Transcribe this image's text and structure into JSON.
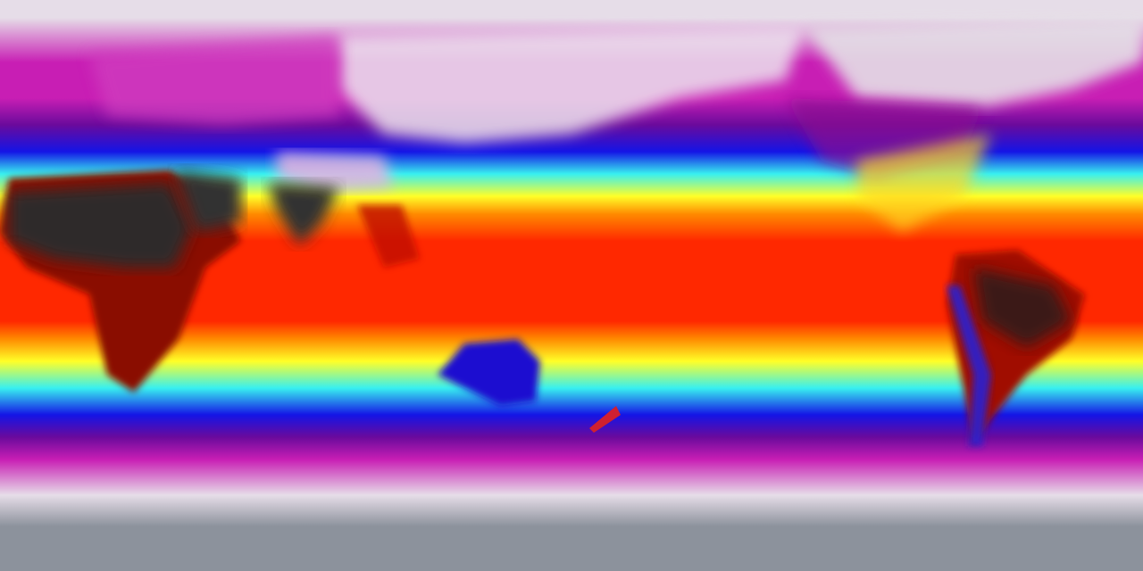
{
  "map": {
    "projection": "equirectangular",
    "variable_scale_palette": [
      "#9aa0aa",
      "#e8e0ea",
      "#c020b0",
      "#7a0aa0",
      "#1010e0",
      "#20a0ff",
      "#40ffe0",
      "#ffff20",
      "#ffa000",
      "#ff2000",
      "#b00000",
      "#303030"
    ],
    "colors": {
      "polar_grey": "#8c929c",
      "frost_white": "#e6dde8",
      "magenta": "#c81eb4",
      "purple": "#6a0a9c",
      "blue": "#1414e6",
      "cyan": "#38f0f0",
      "yellow": "#ffff28",
      "orange": "#ff8a00",
      "red": "#ff2800",
      "dark_red": "#8c0000",
      "hot_dark": "#2e2a2c"
    }
  }
}
